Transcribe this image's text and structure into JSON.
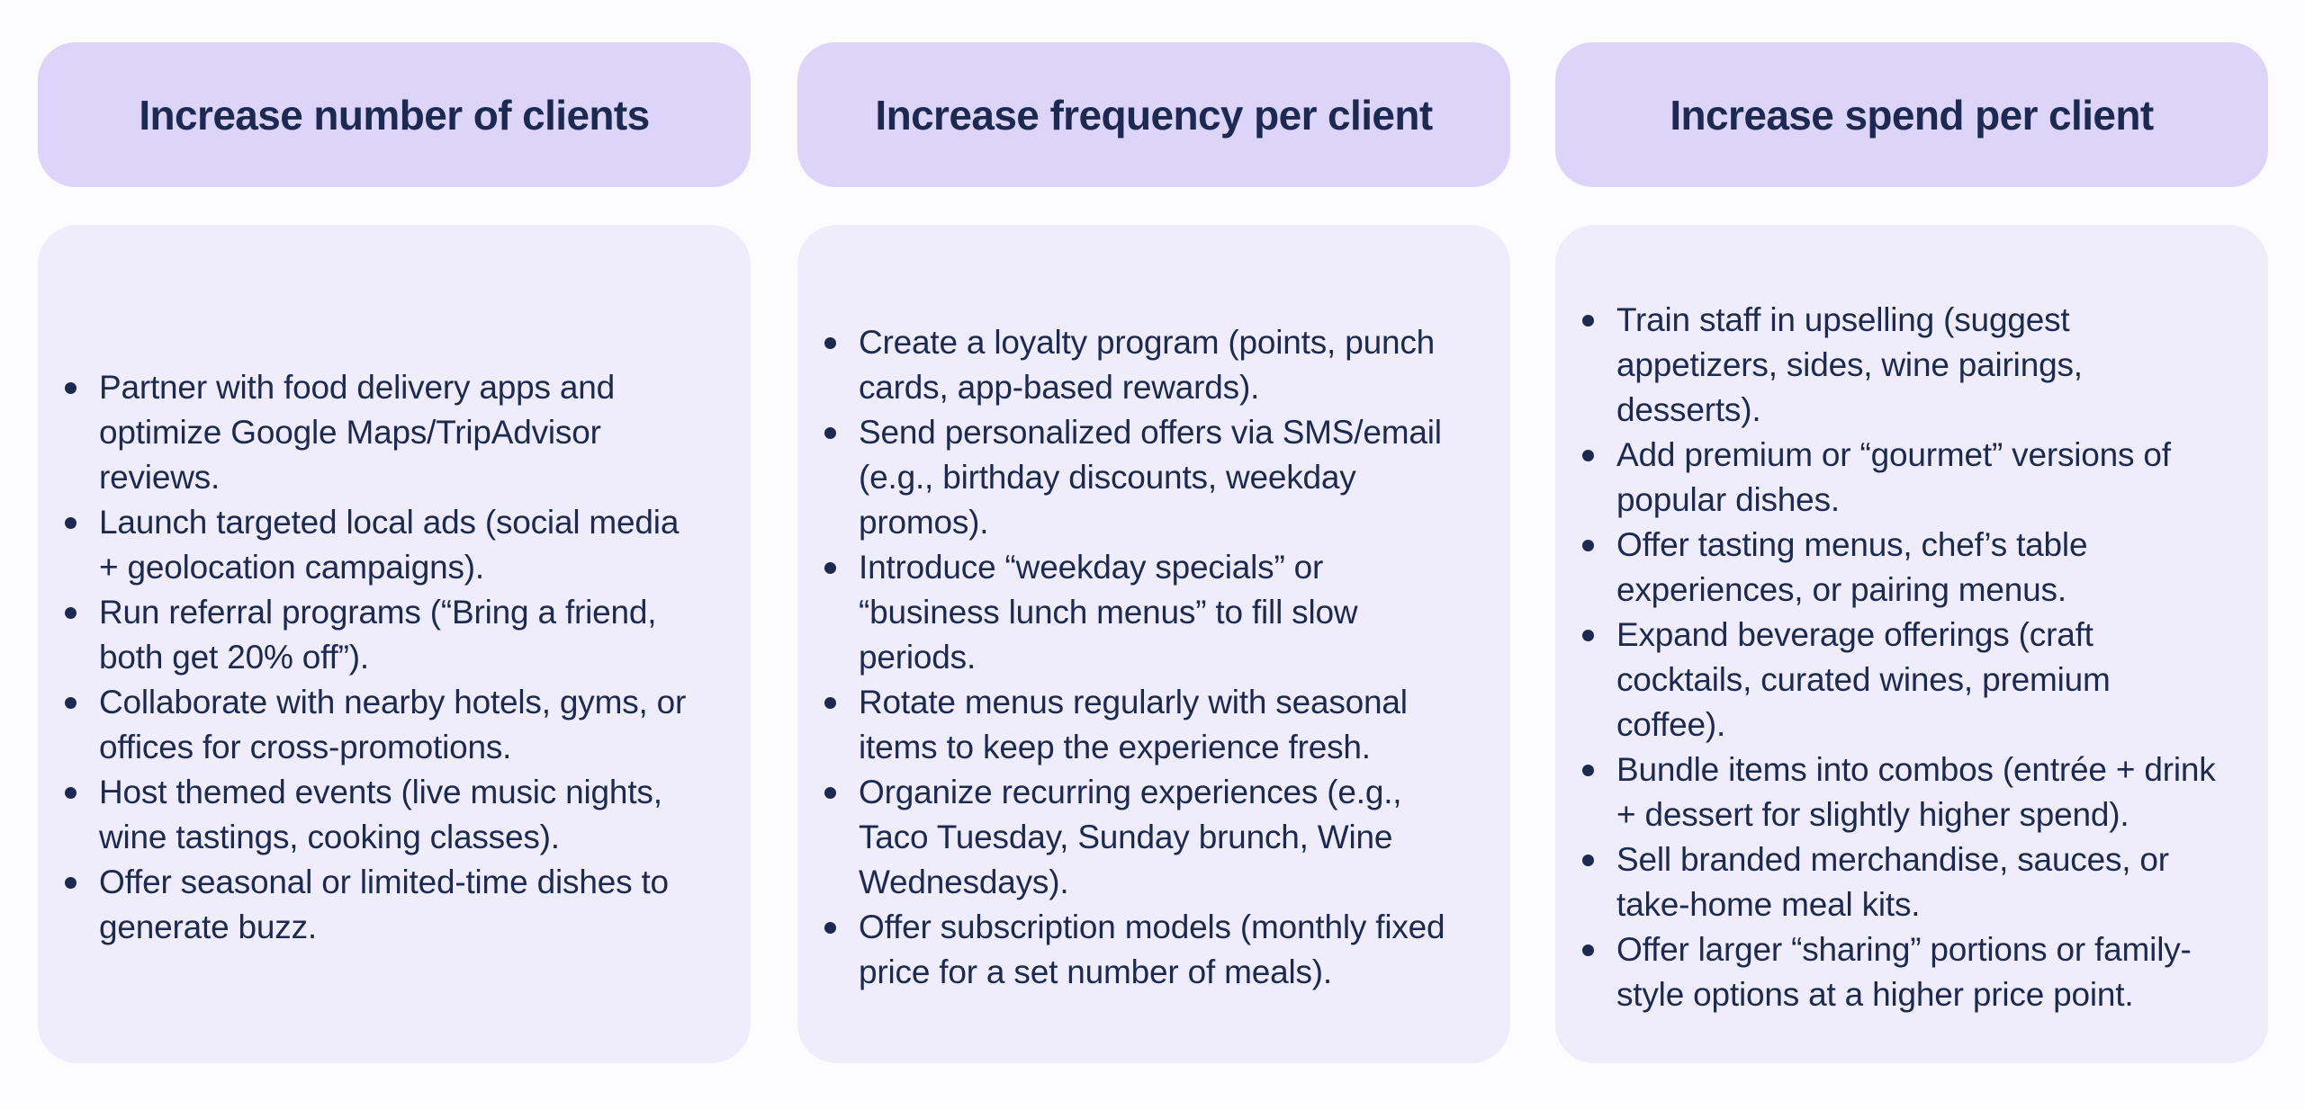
{
  "colors": {
    "background": "#FCFBFE",
    "header_card": "#DCD4F9",
    "body_card": "#EFEDFB",
    "text": "#1C2A52"
  },
  "columns": [
    {
      "id": "increase-number-of-clients",
      "header": "Increase number of clients",
      "bullets": [
        "Partner with food delivery apps and optimize Google Maps/TripAdvisor reviews.",
        "Launch targeted local ads (social media + geolocation campaigns).",
        "Run referral programs (“Bring a friend, both get 20% off”).",
        "Collaborate with nearby hotels, gyms, or offices for cross-promotions.",
        "Host themed events (live music nights, wine tastings, cooking classes).",
        "Offer seasonal or limited-time dishes to generate buzz."
      ]
    },
    {
      "id": "increase-frequency-per-client",
      "header": "Increase frequency per client",
      "bullets": [
        "Create a loyalty program (points, punch cards, app-based rewards).",
        "Send personalized offers via SMS/email (e.g., birthday discounts, weekday promos).",
        "Introduce “weekday specials” or “business lunch menus” to fill slow periods.",
        "Rotate menus regularly with seasonal items to keep the experience fresh.",
        "Organize recurring experiences (e.g., Taco Tuesday, Sunday brunch, Wine Wednesdays).",
        "Offer subscription models (monthly fixed price for a set number of meals)."
      ]
    },
    {
      "id": "increase-spend-per-client",
      "header": "Increase spend per client",
      "bullets": [
        "Train staff in upselling (suggest appetizers, sides, wine pairings, desserts).",
        "Add premium or “gourmet” versions of popular dishes.",
        "Offer tasting menus, chef’s table experiences, or pairing menus.",
        "Expand beverage offerings (craft cocktails, curated wines, premium coffee).",
        "Bundle items into combos (entrée + drink + dessert for slightly higher spend).",
        "Sell branded merchandise, sauces, or take-home meal kits.",
        "Offer larger “sharing” portions or family-style options at a higher price point."
      ]
    }
  ]
}
